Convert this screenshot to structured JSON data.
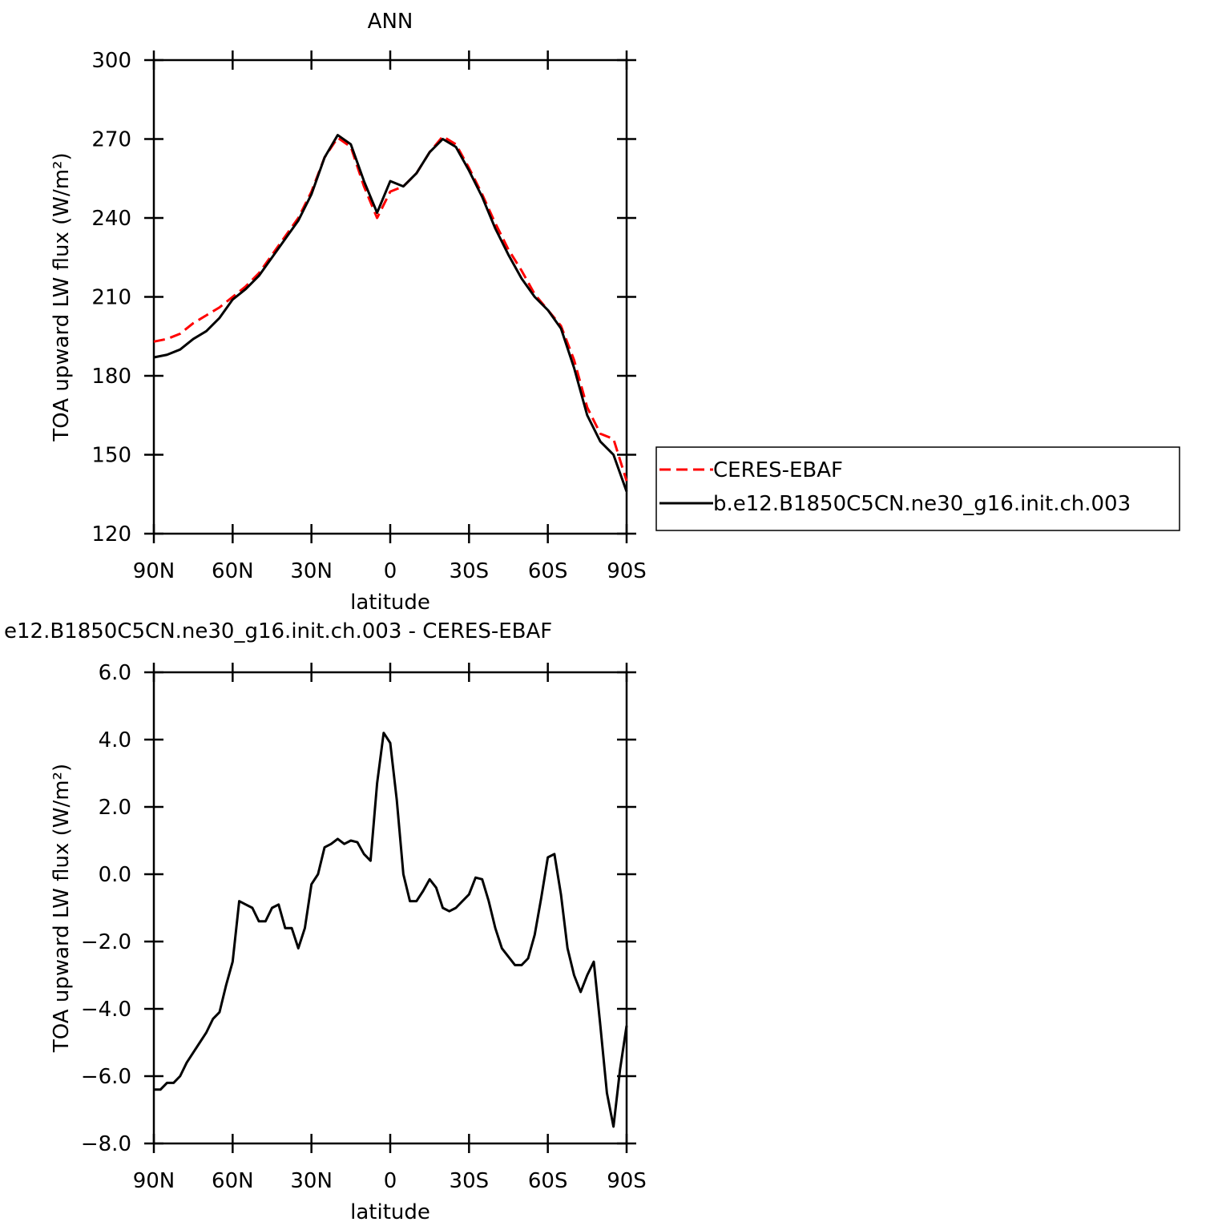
{
  "chart_data": [
    {
      "type": "line",
      "title": "ANN",
      "xlabel": "latitude",
      "ylabel": "TOA upward LW flux (W/m²)",
      "x": [
        90,
        85,
        80,
        75,
        70,
        65,
        60,
        55,
        50,
        45,
        40,
        35,
        30,
        25,
        20,
        15,
        10,
        5,
        0,
        -5,
        -10,
        -15,
        -20,
        -25,
        -30,
        -35,
        -40,
        -45,
        -50,
        -55,
        -60,
        -65,
        -70,
        -75,
        -80,
        -85,
        -90
      ],
      "series": [
        {
          "name": "CERES-EBAF",
          "color": "#ff0000",
          "line_style": "dashed",
          "values": [
            193,
            194,
            196,
            200,
            203,
            206,
            210,
            214,
            219,
            226,
            233,
            240,
            250,
            263,
            270.5,
            267,
            252,
            240,
            250,
            252,
            257,
            265,
            271,
            268,
            259,
            249,
            238,
            228,
            220,
            211,
            205,
            199,
            186,
            168,
            158,
            156,
            140
          ]
        },
        {
          "name": "b.e12.B1850C5CN.ne30_g16.init.ch.003",
          "color": "#000000",
          "line_style": "solid",
          "values": [
            187,
            188,
            190,
            194,
            197,
            202,
            209,
            213,
            218,
            225,
            232,
            239,
            249,
            263,
            271.5,
            268,
            254,
            242,
            254,
            252,
            257,
            265,
            270,
            267,
            258,
            248,
            236,
            226,
            217,
            210,
            205,
            198,
            183,
            165,
            155,
            150,
            136
          ]
        }
      ],
      "xlim": [
        90,
        -90
      ],
      "xticks": [
        {
          "value": 90,
          "label": "90N"
        },
        {
          "value": 60,
          "label": "60N"
        },
        {
          "value": 30,
          "label": "30N"
        },
        0,
        {
          "value": -30,
          "label": "30S"
        },
        {
          "value": -60,
          "label": "60S"
        },
        {
          "value": -90,
          "label": "90S"
        }
      ],
      "ylim": [
        120,
        300
      ],
      "yticks": [
        120,
        150,
        180,
        210,
        240,
        270,
        300
      ],
      "grid": false,
      "legend": "right"
    },
    {
      "type": "line",
      "title": "e12.B1850C5CN.ne30_g16.init.ch.003 - CERES-EBAF",
      "xlabel": "latitude",
      "ylabel": "TOA upward LW flux (W/m²)",
      "x": [
        90,
        87.5,
        85,
        82.5,
        80,
        77.5,
        75,
        72.5,
        70,
        67.5,
        65,
        62.5,
        60,
        57.5,
        55,
        52.5,
        50,
        47.5,
        45,
        42.5,
        40,
        37.5,
        35,
        32.5,
        30,
        27.5,
        25,
        22.5,
        20,
        17.5,
        15,
        12.5,
        10,
        7.5,
        5,
        2.5,
        0,
        -2.5,
        -5,
        -7.5,
        -10,
        -12.5,
        -15,
        -17.5,
        -20,
        -22.5,
        -25,
        -27.5,
        -30,
        -32.5,
        -35,
        -37.5,
        -40,
        -42.5,
        -45,
        -47.5,
        -50,
        -52.5,
        -55,
        -57.5,
        -60,
        -62.5,
        -65,
        -67.5,
        -70,
        -72.5,
        -75,
        -77.5,
        -80,
        -82.5,
        -85,
        -87.5,
        -90
      ],
      "values": [
        -6.4,
        -6.4,
        -6.2,
        -6.2,
        -6.0,
        -5.6,
        -5.3,
        -5.0,
        -4.7,
        -4.3,
        -4.1,
        -3.3,
        -2.6,
        -0.8,
        -0.9,
        -1.0,
        -1.4,
        -1.4,
        -1.0,
        -0.9,
        -1.6,
        -1.6,
        -2.2,
        -1.6,
        -0.3,
        0.0,
        0.8,
        0.9,
        1.05,
        0.9,
        1.0,
        0.95,
        0.6,
        0.4,
        2.7,
        4.2,
        3.9,
        2.2,
        0.0,
        -0.8,
        -0.8,
        -0.5,
        -0.15,
        -0.4,
        -1.0,
        -1.1,
        -1.0,
        -0.8,
        -0.6,
        -0.1,
        -0.15,
        -0.8,
        -1.6,
        -2.2,
        -2.45,
        -2.7,
        -2.7,
        -2.5,
        -1.8,
        -0.7,
        0.5,
        0.6,
        -0.6,
        -2.2,
        -3.0,
        -3.5,
        -3.0,
        -2.6,
        -4.5,
        -6.5,
        -7.5,
        -5.8,
        -4.5
      ],
      "color": "#000000",
      "line_style": "solid",
      "xlim": [
        90,
        -90
      ],
      "xticks": [
        {
          "value": 90,
          "label": "90N"
        },
        {
          "value": 60,
          "label": "60N"
        },
        {
          "value": 30,
          "label": "30N"
        },
        0,
        {
          "value": -30,
          "label": "30S"
        },
        {
          "value": -60,
          "label": "60S"
        },
        {
          "value": -90,
          "label": "90S"
        }
      ],
      "ylim": [
        -8,
        6
      ],
      "yticks": [
        {
          "value": -8,
          "label": "−8.0"
        },
        {
          "value": -6,
          "label": "−6.0"
        },
        {
          "value": -4,
          "label": "−4.0"
        },
        {
          "value": -2,
          "label": "−2.0"
        },
        {
          "value": 0,
          "label": "0.0"
        },
        {
          "value": 2,
          "label": "2.0"
        },
        {
          "value": 4,
          "label": "4.0"
        },
        {
          "value": 6,
          "label": "6.0"
        }
      ],
      "grid": false
    }
  ]
}
